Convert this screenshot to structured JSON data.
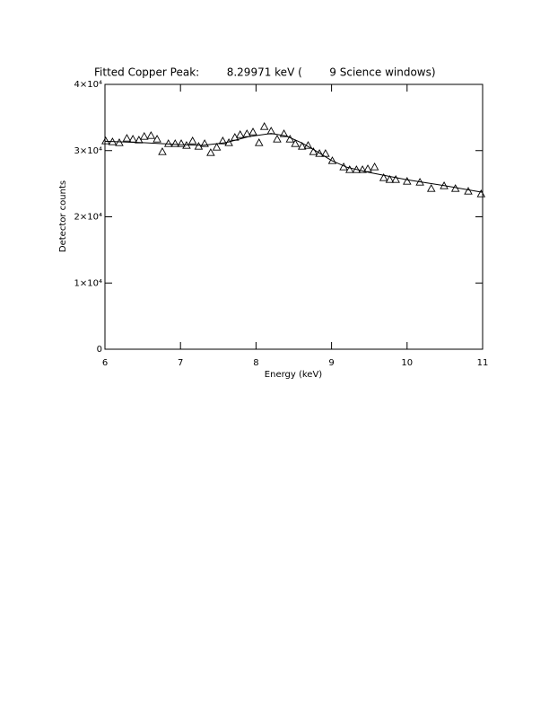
{
  "chart_data": {
    "type": "scatter",
    "title": "Fitted Copper Peak:        8.29971 keV (        9 Science windows)",
    "x_label": "Energy (keV)",
    "y_label": "Detector counts",
    "xlim": [
      6,
      11
    ],
    "ylim": [
      0,
      40000
    ],
    "xticks": [
      6,
      7,
      8,
      9,
      10,
      11
    ],
    "yticks": [
      0,
      {
        "value": 10000,
        "label": "1×10⁴"
      },
      {
        "value": 20000,
        "label": "2×10⁴"
      },
      {
        "value": 30000,
        "label": "3×10⁴"
      },
      {
        "value": 40000,
        "label": "4×10⁴"
      }
    ],
    "color": "#000000",
    "x": [
      6.01,
      6.1,
      6.19,
      6.29,
      6.37,
      6.45,
      6.52,
      6.61,
      6.69,
      6.76,
      6.84,
      6.93,
      7.01,
      7.08,
      7.16,
      7.24,
      7.32,
      7.4,
      7.48,
      7.56,
      7.64,
      7.72,
      7.79,
      7.88,
      7.96,
      8.04,
      8.11,
      8.2,
      8.28,
      8.37,
      8.45,
      8.52,
      8.61,
      8.69,
      8.76,
      8.84,
      8.92,
      9.01,
      9.16,
      9.24,
      9.33,
      9.41,
      9.48,
      9.57,
      9.69,
      9.77,
      9.85,
      10.0,
      10.17,
      10.32,
      10.49,
      10.64,
      10.81,
      10.98
    ],
    "values": [
      31460,
      31320,
      31190,
      31860,
      31730,
      31590,
      32140,
      32270,
      31730,
      29830,
      31050,
      31050,
      31050,
      30780,
      31460,
      30640,
      31050,
      29690,
      30510,
      31460,
      31190,
      32000,
      32410,
      32540,
      32810,
      31190,
      33630,
      32950,
      31730,
      32540,
      31730,
      31050,
      30640,
      30780,
      29830,
      29560,
      29560,
      28470,
      27530,
      27120,
      27120,
      27120,
      27250,
      27530,
      25900,
      25630,
      25630,
      25360,
      25220,
      24270,
      24680,
      24270,
      23860,
      23460
    ],
    "fit": {
      "x": [
        6.0,
        6.5,
        7.0,
        7.3,
        7.6,
        7.9,
        8.2,
        8.4,
        8.6,
        8.8,
        9.0,
        9.2,
        9.5,
        10.0,
        10.5,
        11.0
      ],
      "values": [
        31400,
        31200,
        30900,
        30800,
        31200,
        32100,
        32600,
        32200,
        31200,
        29900,
        28500,
        27500,
        26700,
        25600,
        24700,
        23700
      ]
    }
  }
}
